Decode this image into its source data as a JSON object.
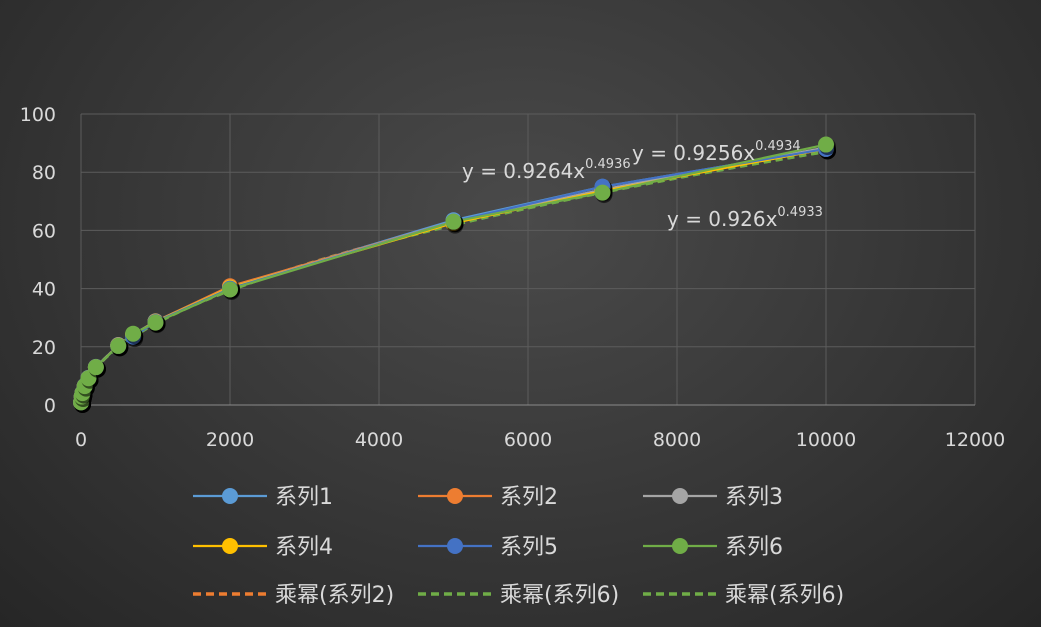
{
  "chart_data": {
    "type": "scatter",
    "title": "",
    "xlabel": "",
    "ylabel": "",
    "xlim": [
      0,
      12000
    ],
    "ylim": [
      0,
      100
    ],
    "x_ticks": [
      "0",
      "2000",
      "4000",
      "6000",
      "8000",
      "10000",
      "12000"
    ],
    "y_ticks": [
      "0",
      "20",
      "40",
      "60",
      "80",
      "100"
    ],
    "grid": true,
    "legend_position": "bottom",
    "series": [
      {
        "name": "系列1",
        "color": "#5b9bd5",
        "x": [
          1,
          10,
          20,
          50,
          100,
          200,
          500,
          700,
          1000,
          2000,
          5000,
          7000,
          10000
        ],
        "y": [
          0.9,
          2.9,
          4.2,
          6.6,
          9.3,
          13.1,
          20.6,
          24.3,
          28.8,
          40.5,
          63.5,
          75.0,
          88.0
        ]
      },
      {
        "name": "系列2",
        "color": "#ed7d31",
        "x": [
          1,
          10,
          20,
          50,
          100,
          200,
          500,
          700,
          1000,
          2000,
          5000,
          7000,
          10000
        ],
        "y": [
          0.9,
          2.9,
          4.1,
          6.5,
          9.2,
          13.0,
          20.5,
          24.2,
          28.7,
          40.8,
          63.0,
          74.0,
          88.0
        ]
      },
      {
        "name": "系列3",
        "color": "#a5a5a5",
        "x": [
          1,
          10,
          20,
          50,
          100,
          200,
          500,
          700,
          1000,
          2000,
          5000,
          7000,
          10000
        ],
        "y": [
          0.9,
          2.9,
          4.1,
          6.5,
          9.2,
          13.0,
          20.4,
          24.1,
          28.6,
          40.3,
          63.0,
          74.0,
          88.5
        ]
      },
      {
        "name": "系列4",
        "color": "#ffc000",
        "x": [
          1,
          10,
          20,
          50,
          100,
          200,
          500,
          700,
          1000,
          2000,
          5000,
          7000,
          10000
        ],
        "y": [
          0.9,
          2.9,
          4.1,
          6.5,
          9.2,
          13.0,
          20.4,
          24.1,
          28.6,
          40.3,
          62.5,
          73.5,
          88.0
        ]
      },
      {
        "name": "系列5",
        "color": "#4472c4",
        "x": [
          1,
          10,
          20,
          50,
          100,
          200,
          500,
          700,
          1000,
          2000,
          5000,
          7000,
          10000
        ],
        "y": [
          0.9,
          2.9,
          4.1,
          6.5,
          9.2,
          13.0,
          20.3,
          23.5,
          28.5,
          40.0,
          63.0,
          75.0,
          88.0
        ]
      },
      {
        "name": "系列6",
        "color": "#70ad47",
        "x": [
          1,
          10,
          20,
          50,
          100,
          200,
          500,
          700,
          1000,
          2000,
          5000,
          7000,
          10000
        ],
        "y": [
          0.9,
          2.9,
          4.1,
          6.5,
          9.2,
          13.0,
          20.3,
          24.5,
          28.3,
          39.7,
          63.0,
          73.0,
          89.5
        ]
      }
    ],
    "trendlines": [
      {
        "name": "乘幂(系列2)",
        "color": "#ed7d31",
        "type": "power",
        "a": 0.9264,
        "b": 0.4936,
        "equation_prefix": "y = 0.9264x",
        "equation_exp": "0.4936"
      },
      {
        "name": "乘幂(系列6)",
        "color": "#70ad47",
        "type": "power",
        "a": 0.9256,
        "b": 0.4934,
        "equation_prefix": "y = 0.9256x",
        "equation_exp": "0.4934"
      },
      {
        "name": "乘幂(系列6)",
        "color": "#70ad47",
        "type": "power",
        "a": 0.926,
        "b": 0.4933,
        "equation_prefix": "y = 0.926x",
        "equation_exp": "0.4933"
      }
    ]
  }
}
